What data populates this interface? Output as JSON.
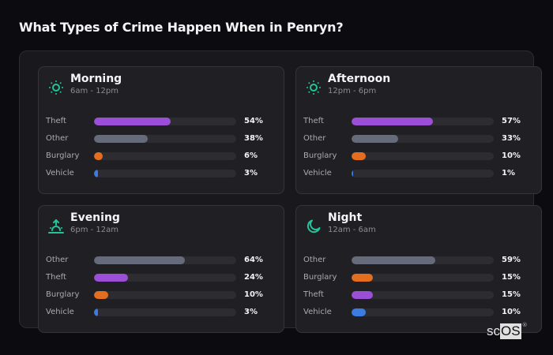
{
  "header": {
    "title": "What Types of Crime Happen When in Penryn?"
  },
  "colors": {
    "Theft": "#9a4fd6",
    "Other": "#656b7b",
    "Burglary": "#e36e1f",
    "Vehicle": "#3c7ce0",
    "icon_accent": "#24c49a"
  },
  "cards": [
    {
      "title": "Morning",
      "subtitle": "6am - 12pm",
      "icon": "sun-icon",
      "rows": [
        {
          "label": "Theft",
          "value": 54,
          "pct": "54%"
        },
        {
          "label": "Other",
          "value": 38,
          "pct": "38%"
        },
        {
          "label": "Burglary",
          "value": 6,
          "pct": "6%"
        },
        {
          "label": "Vehicle",
          "value": 3,
          "pct": "3%"
        }
      ]
    },
    {
      "title": "Afternoon",
      "subtitle": "12pm - 6pm",
      "icon": "sun-icon",
      "rows": [
        {
          "label": "Theft",
          "value": 57,
          "pct": "57%"
        },
        {
          "label": "Other",
          "value": 33,
          "pct": "33%"
        },
        {
          "label": "Burglary",
          "value": 10,
          "pct": "10%"
        },
        {
          "label": "Vehicle",
          "value": 1,
          "pct": "1%"
        }
      ]
    },
    {
      "title": "Evening",
      "subtitle": "6pm - 12am",
      "icon": "sunset-icon",
      "rows": [
        {
          "label": "Other",
          "value": 64,
          "pct": "64%"
        },
        {
          "label": "Theft",
          "value": 24,
          "pct": "24%"
        },
        {
          "label": "Burglary",
          "value": 10,
          "pct": "10%"
        },
        {
          "label": "Vehicle",
          "value": 3,
          "pct": "3%"
        }
      ]
    },
    {
      "title": "Night",
      "subtitle": "12am - 6am",
      "icon": "moon-icon",
      "rows": [
        {
          "label": "Other",
          "value": 59,
          "pct": "59%"
        },
        {
          "label": "Burglary",
          "value": 15,
          "pct": "15%"
        },
        {
          "label": "Theft",
          "value": 15,
          "pct": "15%"
        },
        {
          "label": "Vehicle",
          "value": 10,
          "pct": "10%"
        }
      ]
    }
  ],
  "logo": {
    "sc": "sc",
    "os": "OS",
    "reg": "®"
  },
  "chart_data": [
    {
      "type": "bar",
      "title": "Morning",
      "subtitle": "6am - 12pm",
      "categories": [
        "Theft",
        "Other",
        "Burglary",
        "Vehicle"
      ],
      "values": [
        54,
        38,
        6,
        3
      ],
      "xlabel": "",
      "ylabel": "",
      "ylim": [
        0,
        100
      ]
    },
    {
      "type": "bar",
      "title": "Afternoon",
      "subtitle": "12pm - 6pm",
      "categories": [
        "Theft",
        "Other",
        "Burglary",
        "Vehicle"
      ],
      "values": [
        57,
        33,
        10,
        1
      ],
      "xlabel": "",
      "ylabel": "",
      "ylim": [
        0,
        100
      ]
    },
    {
      "type": "bar",
      "title": "Evening",
      "subtitle": "6pm - 12am",
      "categories": [
        "Other",
        "Theft",
        "Burglary",
        "Vehicle"
      ],
      "values": [
        64,
        24,
        10,
        3
      ],
      "xlabel": "",
      "ylabel": "",
      "ylim": [
        0,
        100
      ]
    },
    {
      "type": "bar",
      "title": "Night",
      "subtitle": "12am - 6am",
      "categories": [
        "Other",
        "Burglary",
        "Theft",
        "Vehicle"
      ],
      "values": [
        59,
        15,
        15,
        10
      ],
      "xlabel": "",
      "ylabel": "",
      "ylim": [
        0,
        100
      ]
    }
  ]
}
